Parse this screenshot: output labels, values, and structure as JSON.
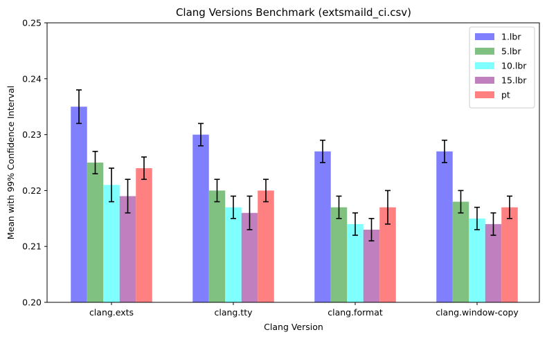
{
  "chart_data": {
    "type": "bar",
    "title": "Clang Versions Benchmark (extsmaild_ci.csv)",
    "xlabel": "Clang Version",
    "ylabel": "Mean with 99% Confidence Interval",
    "ylim": [
      0.2,
      0.25
    ],
    "yticks": [
      "0.20",
      "0.21",
      "0.22",
      "0.23",
      "0.24",
      "0.25"
    ],
    "categories": [
      "clang.exts",
      "clang.tty",
      "clang.format",
      "clang.window-copy"
    ],
    "legend_position": "top-right",
    "grid": false,
    "series": [
      {
        "name": "1.lbr",
        "color": "#8080ff",
        "values": [
          0.235,
          0.23,
          0.227,
          0.227
        ],
        "ci_low": [
          0.232,
          0.228,
          0.225,
          0.225
        ],
        "ci_high": [
          0.238,
          0.232,
          0.229,
          0.229
        ]
      },
      {
        "name": "5.lbr",
        "color": "#80c080",
        "values": [
          0.225,
          0.22,
          0.217,
          0.218
        ],
        "ci_low": [
          0.223,
          0.218,
          0.215,
          0.216
        ],
        "ci_high": [
          0.227,
          0.222,
          0.219,
          0.22
        ]
      },
      {
        "name": "10.lbr",
        "color": "#80ffff",
        "values": [
          0.221,
          0.217,
          0.214,
          0.215
        ],
        "ci_low": [
          0.218,
          0.215,
          0.212,
          0.213
        ],
        "ci_high": [
          0.224,
          0.219,
          0.216,
          0.217
        ]
      },
      {
        "name": "15.lbr",
        "color": "#c080c0",
        "values": [
          0.219,
          0.216,
          0.213,
          0.214
        ],
        "ci_low": [
          0.216,
          0.213,
          0.211,
          0.212
        ],
        "ci_high": [
          0.222,
          0.219,
          0.215,
          0.216
        ]
      },
      {
        "name": "pt",
        "color": "#ff8080",
        "values": [
          0.224,
          0.22,
          0.217,
          0.217
        ],
        "ci_low": [
          0.222,
          0.218,
          0.214,
          0.215
        ],
        "ci_high": [
          0.226,
          0.222,
          0.22,
          0.219
        ]
      }
    ]
  }
}
